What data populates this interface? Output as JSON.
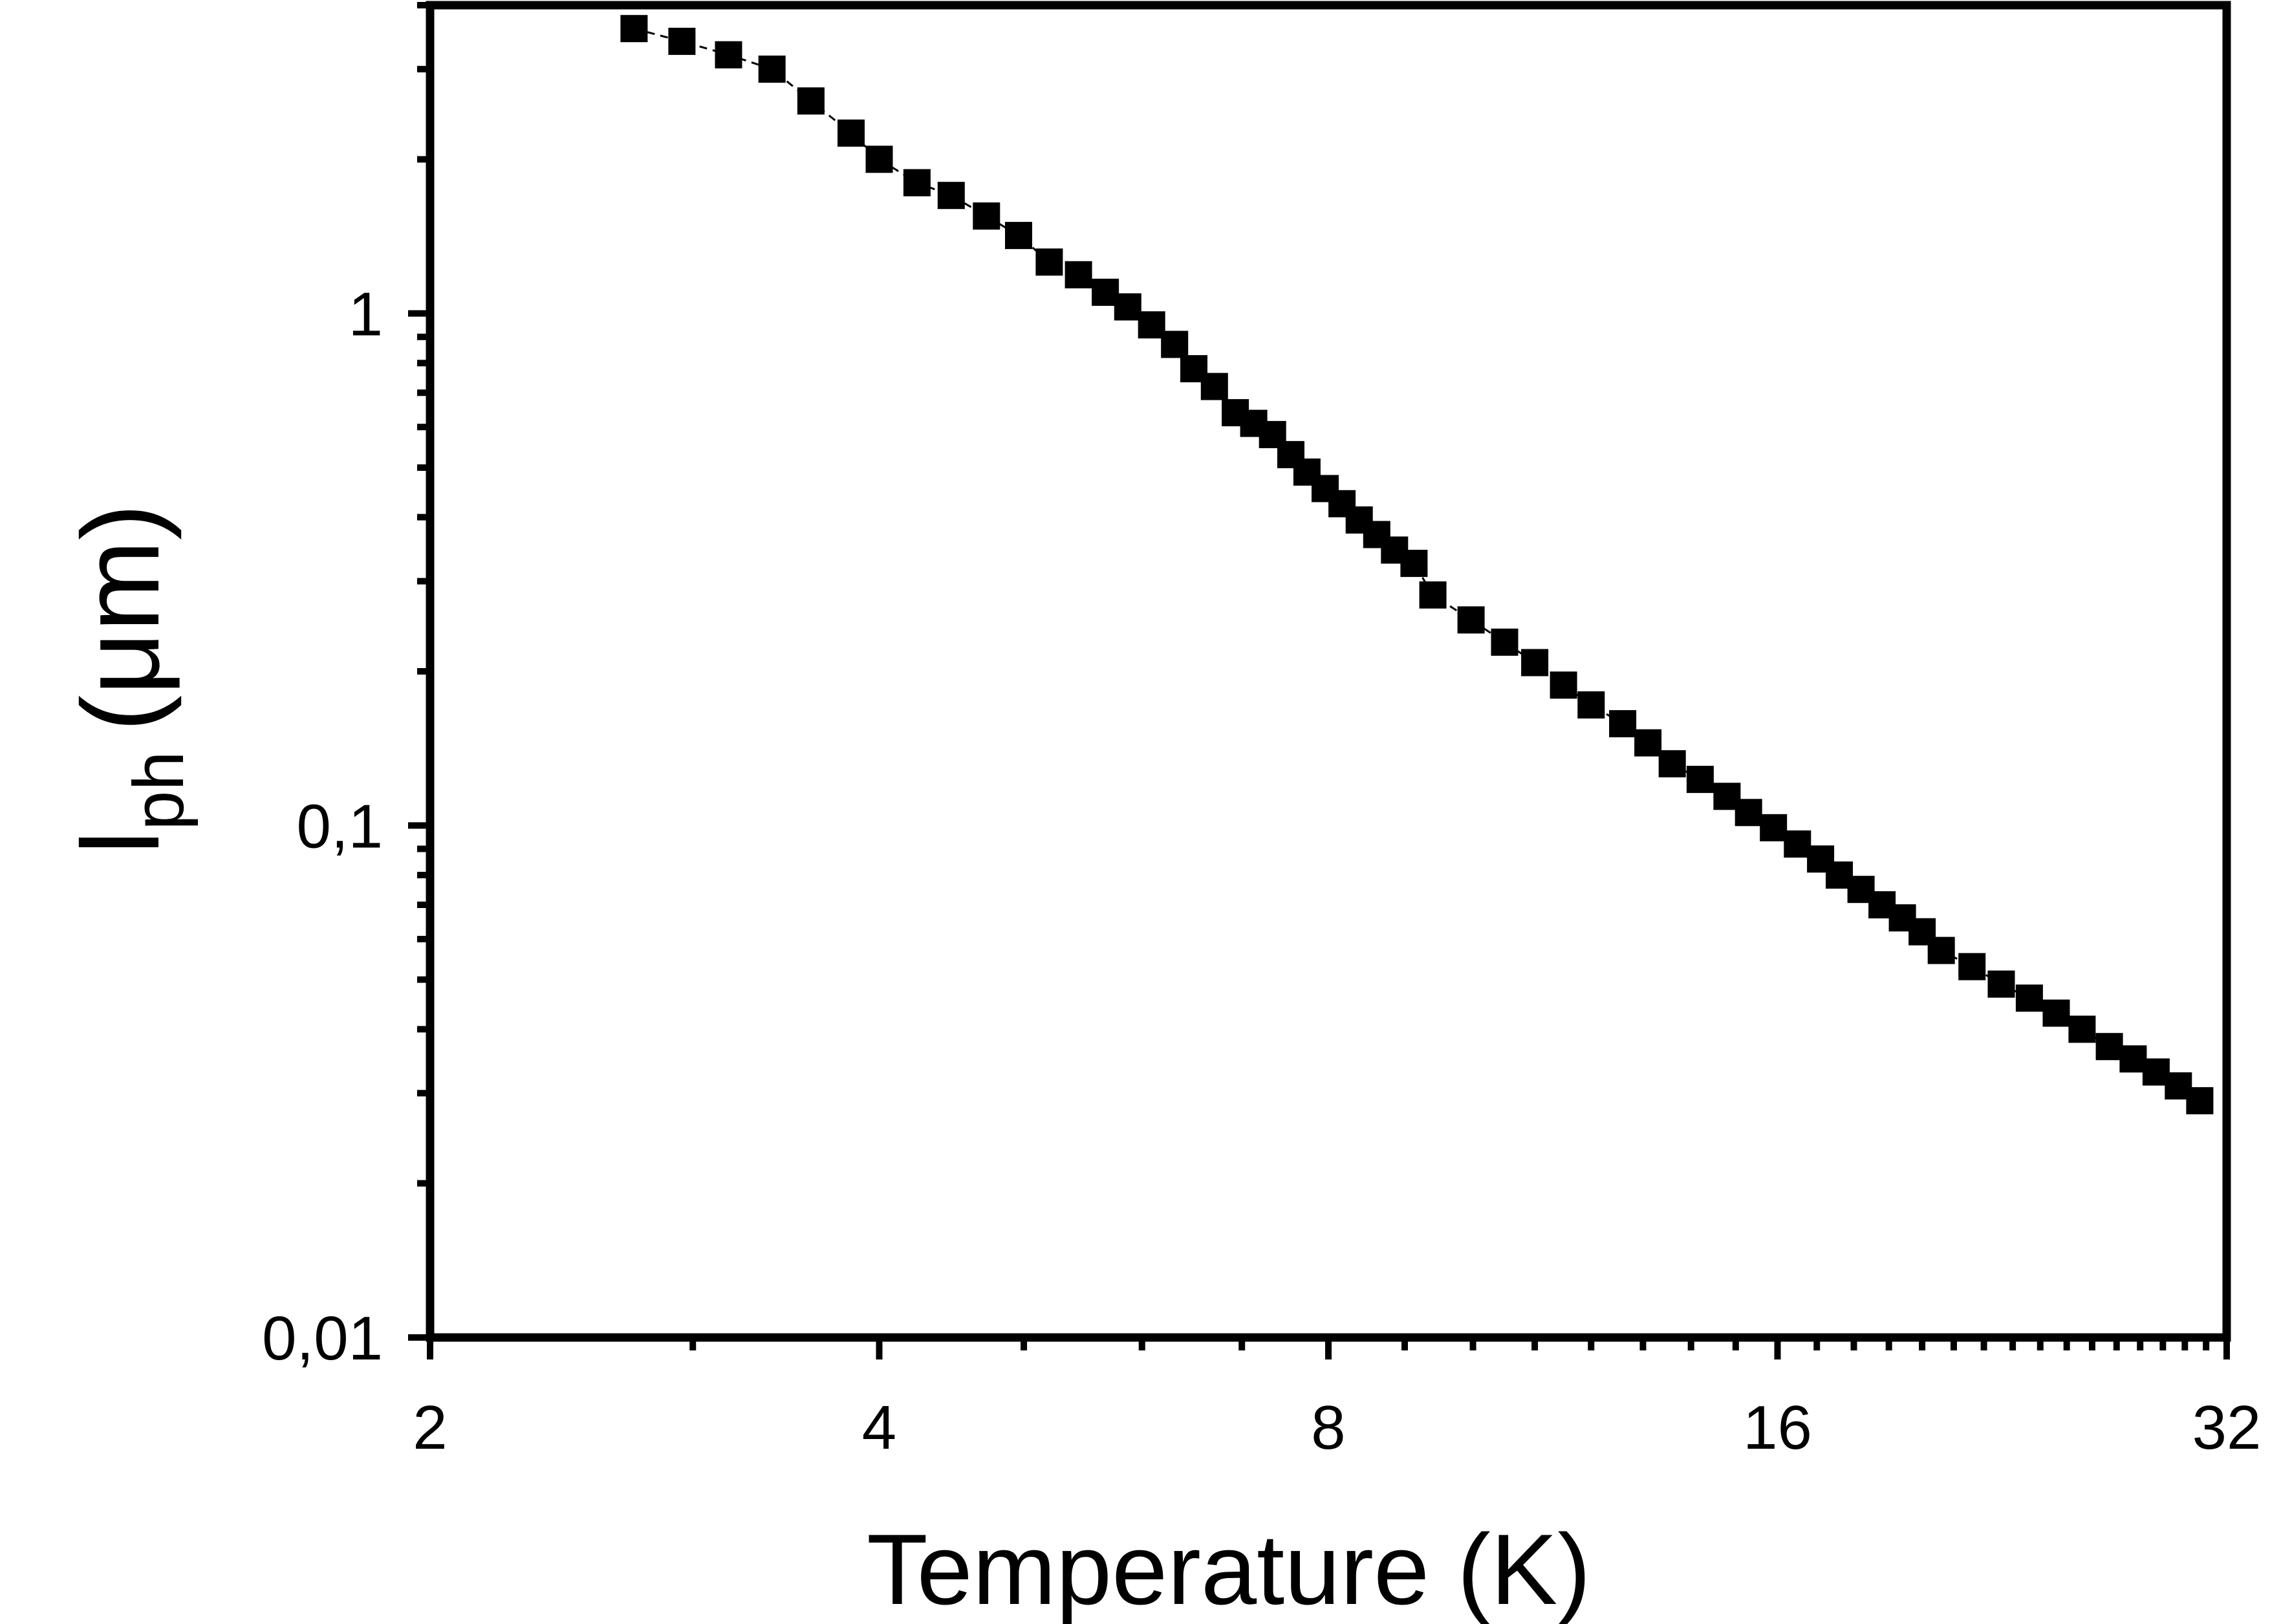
{
  "chart_data": {
    "type": "scatter",
    "title": "",
    "xlabel": "Temperature (K)",
    "ylabel": {
      "main": "l",
      "sub": "ph",
      "unit": "(μm)"
    },
    "x_scale": "log2",
    "y_scale": "log10",
    "xlim": [
      2,
      32
    ],
    "ylim": [
      0.01,
      4.0
    ],
    "x_ticks": [
      {
        "value": 2,
        "label": "2"
      },
      {
        "value": 4,
        "label": "4"
      },
      {
        "value": 8,
        "label": "8"
      },
      {
        "value": 16,
        "label": "16"
      },
      {
        "value": 32,
        "label": "32"
      }
    ],
    "y_ticks": [
      {
        "value": 0.01,
        "label": "0,01"
      },
      {
        "value": 0.1,
        "label": "0,1"
      },
      {
        "value": 1,
        "label": "1"
      }
    ],
    "grid": false,
    "legend": "none",
    "marker": "filled-square",
    "connecting_line": "dashed",
    "series": [
      {
        "x": [
          2.74,
          2.95,
          3.17,
          3.39,
          3.6,
          3.83,
          4.0,
          4.24,
          4.47,
          4.72,
          4.96,
          5.2,
          5.44,
          5.67,
          5.87,
          6.09,
          6.31,
          6.5,
          6.71,
          6.93,
          7.13,
          7.34,
          7.55,
          7.74,
          7.96,
          8.17,
          8.39,
          8.62,
          8.86,
          9.13,
          9.4,
          9.97,
          10.5,
          11.0,
          11.5,
          12.0,
          12.6,
          13.1,
          13.6,
          14.2,
          14.8,
          15.3,
          15.9,
          16.5,
          17.1,
          17.6,
          18.2,
          18.8,
          19.4,
          20.0,
          20.6,
          21.6,
          22.6,
          23.6,
          24.6,
          25.6,
          26.7,
          27.7,
          28.7,
          29.7,
          30.7
        ],
        "y": [
          3.6,
          3.4,
          3.2,
          3.0,
          2.6,
          2.25,
          2.0,
          1.8,
          1.7,
          1.55,
          1.42,
          1.26,
          1.19,
          1.1,
          1.03,
          0.95,
          0.87,
          0.78,
          0.72,
          0.64,
          0.61,
          0.58,
          0.53,
          0.49,
          0.455,
          0.425,
          0.395,
          0.37,
          0.345,
          0.325,
          0.282,
          0.252,
          0.228,
          0.208,
          0.188,
          0.172,
          0.158,
          0.145,
          0.132,
          0.123,
          0.114,
          0.106,
          0.099,
          0.092,
          0.086,
          0.08,
          0.075,
          0.07,
          0.066,
          0.062,
          0.057,
          0.053,
          0.049,
          0.046,
          0.043,
          0.04,
          0.037,
          0.035,
          0.033,
          0.031,
          0.029
        ]
      }
    ]
  },
  "colors": {
    "axis": "#000000",
    "marker": "#000000",
    "background": "#ffffff"
  }
}
